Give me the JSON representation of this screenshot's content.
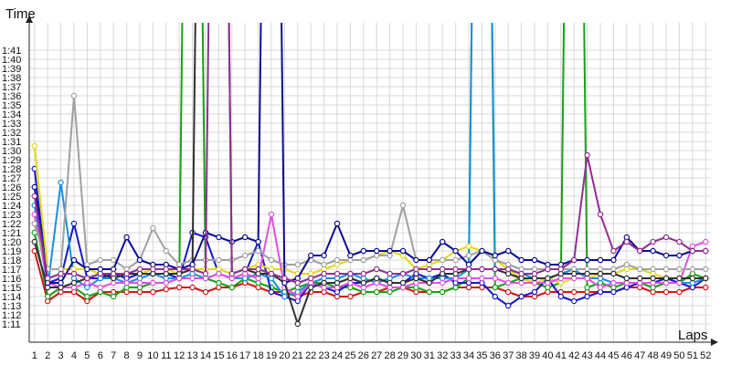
{
  "chart_data": {
    "type": "line",
    "ylabel": "Time",
    "xlabel": "Laps",
    "x": [
      1,
      2,
      3,
      4,
      5,
      6,
      7,
      8,
      9,
      10,
      11,
      12,
      13,
      14,
      15,
      16,
      17,
      18,
      19,
      20,
      21,
      22,
      23,
      24,
      25,
      26,
      27,
      28,
      29,
      30,
      31,
      32,
      33,
      34,
      35,
      36,
      37,
      38,
      39,
      40,
      41,
      42,
      43,
      44,
      45,
      46,
      47,
      48,
      49,
      50,
      51,
      52
    ],
    "xlim": [
      0.6,
      52.4
    ],
    "y_ticks": [
      "1:11",
      "1:12",
      "1:13",
      "1:14",
      "1:15",
      "1:16",
      "1:17",
      "1:18",
      "1:19",
      "1:20",
      "1:21",
      "1:22",
      "1:23",
      "1:24",
      "1:25",
      "1:26",
      "1:27",
      "1:28",
      "1:29",
      "1:30",
      "1:31",
      "1:32",
      "1:33",
      "1:34",
      "1:35",
      "1:36",
      "1:37",
      "1:38",
      "1:39",
      "1:40",
      "1:41"
    ],
    "y_tick_seconds": [
      71,
      72,
      73,
      74,
      75,
      76,
      77,
      78,
      79,
      80,
      81,
      82,
      83,
      84,
      85,
      86,
      87,
      88,
      89,
      90,
      91,
      92,
      93,
      94,
      95,
      96,
      97,
      98,
      99,
      100,
      101
    ],
    "ylim_seconds": [
      69,
      104
    ],
    "grid": true,
    "legend": "none",
    "series": [
      {
        "color": "#d01818",
        "values": [
          79,
          73.5,
          74.5,
          74.5,
          73.5,
          74.5,
          74.5,
          74.5,
          74.5,
          74.5,
          74.8,
          75,
          75,
          74.5,
          75,
          75,
          75.5,
          75,
          74.5,
          74.5,
          74,
          74.5,
          74.5,
          74,
          74,
          74.5,
          74.5,
          75,
          75,
          74.5,
          74.5,
          74.5,
          75,
          75,
          75,
          75,
          74.5,
          74,
          74,
          74.5,
          74.5,
          74.5,
          74.5,
          74.5,
          74.5,
          75,
          75,
          74.5,
          74.5,
          74.5,
          75,
          75
        ]
      },
      {
        "color": "#18a018",
        "values": [
          81,
          74,
          75,
          75,
          74,
          74.5,
          74,
          75,
          75,
          75.5,
          75.5,
          76,
          200,
          76,
          75.5,
          75,
          76,
          75.5,
          75,
          74.5,
          75,
          75.5,
          75.5,
          75,
          75,
          74.5,
          74.5,
          74.5,
          75,
          75,
          74.5,
          74.5,
          75,
          76,
          200,
          75,
          75.5,
          76,
          75.5,
          75,
          75.5,
          200,
          75,
          75.5,
          75,
          75.5,
          75.5,
          75,
          75.5,
          75.5,
          76.5,
          76
        ]
      },
      {
        "color": "#1818c8",
        "values": [
          88,
          75.5,
          76,
          82,
          76,
          76,
          76.5,
          76,
          76.5,
          76.5,
          76.5,
          76,
          81,
          80.5,
          76.5,
          76,
          76.5,
          80,
          74.5,
          74,
          73.5,
          75.5,
          75,
          74.5,
          75.5,
          75.5,
          76,
          75.5,
          75.5,
          76.5,
          76,
          76.5,
          75.5,
          75.5,
          75.5,
          74,
          73,
          74,
          74.5,
          76,
          74,
          73.5,
          74,
          74.5,
          74.5,
          75,
          75.5,
          75.5,
          76,
          75.5,
          75,
          76
        ]
      },
      {
        "color": "#1890e0",
        "values": [
          84,
          75,
          86.5,
          76,
          75,
          76,
          76,
          75.5,
          76,
          76.5,
          76,
          76,
          76.5,
          76,
          76.5,
          76,
          76,
          76.5,
          76,
          74,
          74.5,
          75.5,
          76,
          76,
          76.5,
          76,
          75.5,
          76,
          76.5,
          76,
          76,
          76,
          76,
          77,
          200,
          77,
          77,
          76.5,
          76,
          76,
          76.5,
          77,
          76,
          76,
          75.5,
          75.5,
          75.5,
          75.5,
          75.5,
          75.5,
          75.5,
          76
        ]
      },
      {
        "color": "#e0d818",
        "values": [
          90.5,
          77,
          77,
          77,
          77,
          76.5,
          76.5,
          76.5,
          76.5,
          77,
          77,
          76.5,
          77,
          77,
          77,
          76.5,
          77,
          77.5,
          77,
          77,
          76.5,
          76.5,
          77,
          77.5,
          78,
          78,
          78.5,
          79,
          78.5,
          77,
          77.5,
          78,
          79,
          79.5,
          79,
          78,
          77,
          76,
          75.5,
          76,
          75.5,
          76,
          76,
          76.5,
          76.5,
          77,
          77,
          76.5,
          76,
          76,
          76,
          76
        ]
      },
      {
        "color": "#e050e0",
        "values": [
          83,
          75.5,
          75,
          75,
          75.5,
          75,
          75.5,
          75.5,
          75.5,
          75.5,
          75.5,
          76,
          76,
          76,
          76.5,
          76,
          76.5,
          76,
          83,
          75,
          74,
          75.5,
          75,
          75,
          75.5,
          75,
          75.5,
          75,
          75,
          75.5,
          75.5,
          75.5,
          76,
          76,
          76,
          76,
          75.5,
          75.5,
          75.5,
          75.5,
          76,
          76,
          76,
          75,
          75.5,
          75.5,
          75.5,
          75.5,
          75.5,
          75.5,
          79.5,
          80
        ]
      },
      {
        "color": "#a0a0a0",
        "values": [
          82,
          77,
          77,
          96,
          77.5,
          78,
          78,
          77,
          78,
          81.5,
          79,
          77.5,
          78,
          78,
          78,
          78,
          78.5,
          79,
          78,
          77.5,
          77.5,
          78,
          77.5,
          78,
          78,
          78,
          78.5,
          78.5,
          84,
          78,
          78,
          78,
          78,
          78.5,
          79,
          78,
          77.5,
          77,
          77,
          77,
          77,
          77,
          77,
          77,
          77,
          77.5,
          77,
          77,
          77,
          77,
          77,
          77
        ]
      },
      {
        "color": "#303030",
        "values": [
          80,
          75,
          75,
          75.5,
          76,
          76.5,
          76,
          76.5,
          76.5,
          76.5,
          76.5,
          76.5,
          77,
          200,
          200,
          76.5,
          77,
          76.5,
          76.5,
          75.5,
          71,
          75,
          75.5,
          75.5,
          76,
          75.5,
          76,
          75.5,
          75.5,
          76,
          75.5,
          76.5,
          76.5,
          77,
          77,
          77,
          76.5,
          76,
          76,
          76,
          76.5,
          76.5,
          76.5,
          76.5,
          76.5,
          76,
          76,
          76,
          76,
          76,
          76,
          76
        ]
      },
      {
        "color": "#0c0c90",
        "values": [
          86,
          75.5,
          75.5,
          78,
          77,
          77,
          77,
          80.5,
          78,
          77.5,
          77.5,
          77,
          77.5,
          81,
          80.5,
          80,
          80.5,
          80,
          200,
          75.5,
          76,
          78.5,
          78.5,
          82,
          78.5,
          79,
          79,
          79,
          79,
          78,
          78,
          80,
          79,
          77.5,
          79,
          78.5,
          79,
          78,
          78,
          77.5,
          77.5,
          78,
          78,
          78,
          78,
          80.5,
          79,
          79,
          78.5,
          78.5,
          79,
          79
        ]
      },
      {
        "color": "#903090",
        "values": [
          85,
          76,
          76.5,
          76.5,
          76,
          76.5,
          76.5,
          76.5,
          77,
          77,
          77,
          77,
          77,
          76.5,
          200,
          76.5,
          77,
          77,
          76.5,
          76,
          75.5,
          76,
          76.5,
          76.5,
          76.5,
          76.5,
          77,
          76.5,
          76.5,
          77,
          77,
          77,
          77,
          77,
          77,
          77,
          77,
          76.5,
          76.5,
          77,
          77,
          78,
          89.5,
          83,
          79,
          80,
          79,
          80,
          80.5,
          80,
          79,
          79
        ]
      }
    ]
  }
}
